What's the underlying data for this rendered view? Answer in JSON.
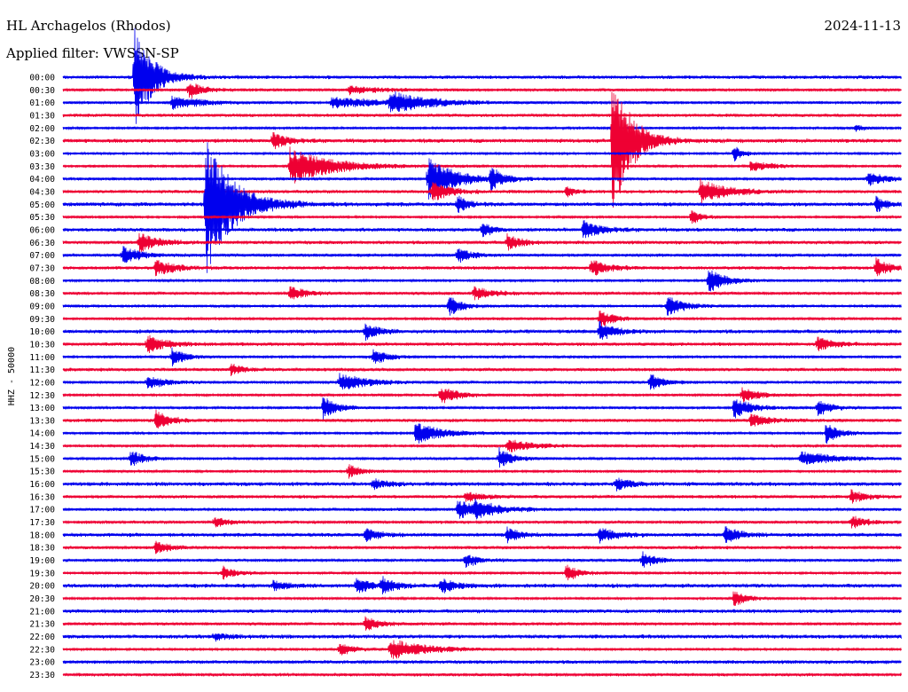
{
  "header": {
    "station": "HL Archagelos (Rhodos)",
    "date": "2024-11-13",
    "filter_label": "Applied filter:",
    "filter_value": "VWSSN-SP"
  },
  "chart_data": {
    "type": "line",
    "title": "HL Archagelos (Rhodos)",
    "ylabel": "HHZ - 50000",
    "xlabel": "",
    "rows": [
      "00:00",
      "00:30",
      "01:00",
      "01:30",
      "02:00",
      "02:30",
      "03:00",
      "03:30",
      "04:00",
      "04:30",
      "05:00",
      "05:30",
      "06:00",
      "06:30",
      "07:00",
      "07:30",
      "08:00",
      "08:30",
      "09:00",
      "09:30",
      "10:00",
      "10:30",
      "11:00",
      "11:30",
      "12:00",
      "12:30",
      "13:00",
      "13:30",
      "14:00",
      "14:30",
      "15:00",
      "15:30",
      "16:00",
      "16:30",
      "17:00",
      "17:30",
      "18:00",
      "18:30",
      "19:00",
      "19:30",
      "20:00",
      "20:30",
      "21:00",
      "21:30",
      "22:00",
      "22:30",
      "23:00",
      "23:30"
    ],
    "colors": [
      "#0000ee",
      "#ee0033"
    ],
    "grid": false,
    "events": [
      {
        "row": 0,
        "x": 0.085,
        "amp": 60,
        "dur": 0.02
      },
      {
        "row": 1,
        "x": 0.15,
        "amp": 10,
        "dur": 0.015
      },
      {
        "row": 1,
        "x": 0.34,
        "amp": 5,
        "dur": 0.03
      },
      {
        "row": 2,
        "x": 0.13,
        "amp": 8,
        "dur": 0.03
      },
      {
        "row": 2,
        "x": 0.32,
        "amp": 6,
        "dur": 0.06
      },
      {
        "row": 2,
        "x": 0.39,
        "amp": 12,
        "dur": 0.04
      },
      {
        "row": 4,
        "x": 0.945,
        "amp": 4,
        "dur": 0.01
      },
      {
        "row": 5,
        "x": 0.25,
        "amp": 10,
        "dur": 0.015
      },
      {
        "row": 5,
        "x": 0.655,
        "amp": 95,
        "dur": 0.02
      },
      {
        "row": 6,
        "x": 0.8,
        "amp": 9,
        "dur": 0.01
      },
      {
        "row": 7,
        "x": 0.27,
        "amp": 22,
        "dur": 0.045
      },
      {
        "row": 7,
        "x": 0.82,
        "amp": 5,
        "dur": 0.03
      },
      {
        "row": 8,
        "x": 0.435,
        "amp": 25,
        "dur": 0.03
      },
      {
        "row": 8,
        "x": 0.51,
        "amp": 12,
        "dur": 0.015
      },
      {
        "row": 8,
        "x": 0.96,
        "amp": 8,
        "dur": 0.02
      },
      {
        "row": 9,
        "x": 0.44,
        "amp": 12,
        "dur": 0.02
      },
      {
        "row": 9,
        "x": 0.6,
        "amp": 6,
        "dur": 0.01
      },
      {
        "row": 9,
        "x": 0.76,
        "amp": 14,
        "dur": 0.03
      },
      {
        "row": 10,
        "x": 0.17,
        "amp": 80,
        "dur": 0.03
      },
      {
        "row": 10,
        "x": 0.47,
        "amp": 12,
        "dur": 0.01
      },
      {
        "row": 10,
        "x": 0.97,
        "amp": 10,
        "dur": 0.01
      },
      {
        "row": 11,
        "x": 0.75,
        "amp": 10,
        "dur": 0.01
      },
      {
        "row": 12,
        "x": 0.5,
        "amp": 10,
        "dur": 0.01
      },
      {
        "row": 12,
        "x": 0.62,
        "amp": 10,
        "dur": 0.02
      },
      {
        "row": 13,
        "x": 0.09,
        "amp": 12,
        "dur": 0.02
      },
      {
        "row": 13,
        "x": 0.53,
        "amp": 9,
        "dur": 0.015
      },
      {
        "row": 14,
        "x": 0.07,
        "amp": 10,
        "dur": 0.02
      },
      {
        "row": 14,
        "x": 0.47,
        "amp": 9,
        "dur": 0.015
      },
      {
        "row": 15,
        "x": 0.11,
        "amp": 10,
        "dur": 0.02
      },
      {
        "row": 15,
        "x": 0.63,
        "amp": 9,
        "dur": 0.02
      },
      {
        "row": 15,
        "x": 0.97,
        "amp": 10,
        "dur": 0.015
      },
      {
        "row": 16,
        "x": 0.77,
        "amp": 14,
        "dur": 0.02
      },
      {
        "row": 17,
        "x": 0.27,
        "amp": 10,
        "dur": 0.015
      },
      {
        "row": 17,
        "x": 0.49,
        "amp": 8,
        "dur": 0.02
      },
      {
        "row": 18,
        "x": 0.46,
        "amp": 12,
        "dur": 0.015
      },
      {
        "row": 18,
        "x": 0.72,
        "amp": 12,
        "dur": 0.02
      },
      {
        "row": 19,
        "x": 0.64,
        "amp": 10,
        "dur": 0.015
      },
      {
        "row": 20,
        "x": 0.36,
        "amp": 10,
        "dur": 0.015
      },
      {
        "row": 20,
        "x": 0.64,
        "amp": 12,
        "dur": 0.015
      },
      {
        "row": 21,
        "x": 0.1,
        "amp": 10,
        "dur": 0.02
      },
      {
        "row": 21,
        "x": 0.9,
        "amp": 8,
        "dur": 0.02
      },
      {
        "row": 22,
        "x": 0.13,
        "amp": 10,
        "dur": 0.015
      },
      {
        "row": 22,
        "x": 0.37,
        "amp": 10,
        "dur": 0.015
      },
      {
        "row": 23,
        "x": 0.2,
        "amp": 6,
        "dur": 0.015
      },
      {
        "row": 24,
        "x": 0.1,
        "amp": 8,
        "dur": 0.02
      },
      {
        "row": 24,
        "x": 0.33,
        "amp": 10,
        "dur": 0.03
      },
      {
        "row": 24,
        "x": 0.7,
        "amp": 10,
        "dur": 0.015
      },
      {
        "row": 25,
        "x": 0.45,
        "amp": 10,
        "dur": 0.02
      },
      {
        "row": 25,
        "x": 0.81,
        "amp": 8,
        "dur": 0.02
      },
      {
        "row": 26,
        "x": 0.31,
        "amp": 14,
        "dur": 0.015
      },
      {
        "row": 26,
        "x": 0.8,
        "amp": 12,
        "dur": 0.02
      },
      {
        "row": 26,
        "x": 0.9,
        "amp": 10,
        "dur": 0.015
      },
      {
        "row": 27,
        "x": 0.11,
        "amp": 12,
        "dur": 0.015
      },
      {
        "row": 27,
        "x": 0.82,
        "amp": 8,
        "dur": 0.02
      },
      {
        "row": 28,
        "x": 0.42,
        "amp": 12,
        "dur": 0.03
      },
      {
        "row": 28,
        "x": 0.91,
        "amp": 12,
        "dur": 0.015
      },
      {
        "row": 29,
        "x": 0.53,
        "amp": 8,
        "dur": 0.03
      },
      {
        "row": 30,
        "x": 0.08,
        "amp": 10,
        "dur": 0.015
      },
      {
        "row": 30,
        "x": 0.52,
        "amp": 12,
        "dur": 0.015
      },
      {
        "row": 30,
        "x": 0.88,
        "amp": 8,
        "dur": 0.04
      },
      {
        "row": 31,
        "x": 0.34,
        "amp": 8,
        "dur": 0.015
      },
      {
        "row": 32,
        "x": 0.37,
        "amp": 6,
        "dur": 0.015
      },
      {
        "row": 32,
        "x": 0.66,
        "amp": 8,
        "dur": 0.015
      },
      {
        "row": 33,
        "x": 0.48,
        "amp": 6,
        "dur": 0.02
      },
      {
        "row": 33,
        "x": 0.94,
        "amp": 8,
        "dur": 0.015
      },
      {
        "row": 34,
        "x": 0.47,
        "amp": 12,
        "dur": 0.02
      },
      {
        "row": 34,
        "x": 0.49,
        "amp": 8,
        "dur": 0.03
      },
      {
        "row": 35,
        "x": 0.18,
        "amp": 6,
        "dur": 0.015
      },
      {
        "row": 35,
        "x": 0.94,
        "amp": 8,
        "dur": 0.015
      },
      {
        "row": 36,
        "x": 0.36,
        "amp": 8,
        "dur": 0.015
      },
      {
        "row": 36,
        "x": 0.53,
        "amp": 8,
        "dur": 0.015
      },
      {
        "row": 36,
        "x": 0.64,
        "amp": 8,
        "dur": 0.02
      },
      {
        "row": 36,
        "x": 0.79,
        "amp": 10,
        "dur": 0.015
      },
      {
        "row": 37,
        "x": 0.11,
        "amp": 8,
        "dur": 0.015
      },
      {
        "row": 38,
        "x": 0.48,
        "amp": 8,
        "dur": 0.015
      },
      {
        "row": 38,
        "x": 0.69,
        "amp": 10,
        "dur": 0.015
      },
      {
        "row": 39,
        "x": 0.19,
        "amp": 8,
        "dur": 0.015
      },
      {
        "row": 39,
        "x": 0.6,
        "amp": 10,
        "dur": 0.015
      },
      {
        "row": 40,
        "x": 0.25,
        "amp": 6,
        "dur": 0.015
      },
      {
        "row": 40,
        "x": 0.35,
        "amp": 10,
        "dur": 0.015
      },
      {
        "row": 40,
        "x": 0.38,
        "amp": 10,
        "dur": 0.015
      },
      {
        "row": 40,
        "x": 0.45,
        "amp": 10,
        "dur": 0.015
      },
      {
        "row": 41,
        "x": 0.8,
        "amp": 9,
        "dur": 0.015
      },
      {
        "row": 43,
        "x": 0.36,
        "amp": 8,
        "dur": 0.015
      },
      {
        "row": 44,
        "x": 0.18,
        "amp": 4,
        "dur": 0.015
      },
      {
        "row": 45,
        "x": 0.33,
        "amp": 8,
        "dur": 0.015
      },
      {
        "row": 45,
        "x": 0.39,
        "amp": 12,
        "dur": 0.04
      }
    ]
  }
}
